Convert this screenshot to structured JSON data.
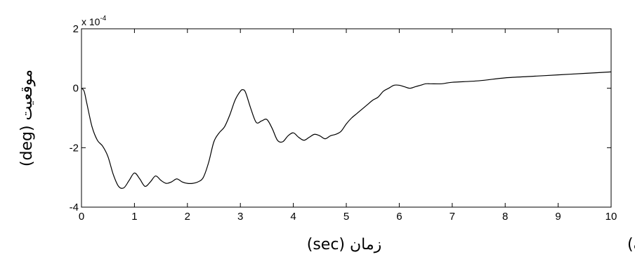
{
  "chart_data": {
    "type": "line",
    "title": "",
    "xlabel": "زمان (sec)",
    "ylabel": "موقعیت (deg)",
    "panel_label": "الف)",
    "y_exponent_label": "x 10",
    "y_exponent_power": "-4",
    "xlim": [
      0,
      10
    ],
    "ylim": [
      -4,
      2
    ],
    "y_scale_factor": 0.0001,
    "xticks": [
      0,
      1,
      2,
      3,
      4,
      5,
      6,
      7,
      8,
      9,
      10
    ],
    "xtick_labels": [
      "0",
      "1",
      "2",
      "3",
      "4",
      "5",
      "6",
      "7",
      "8",
      "9",
      "10"
    ],
    "yticks": [
      -4,
      -2,
      0,
      2
    ],
    "ytick_labels": [
      "-4",
      "-2",
      "0",
      "2"
    ],
    "grid": false,
    "line_color": "#000000",
    "series": [
      {
        "x": [
          0,
          0.05,
          0.1,
          0.2,
          0.3,
          0.4,
          0.5,
          0.6,
          0.7,
          0.8,
          0.9,
          1.0,
          1.1,
          1.2,
          1.3,
          1.4,
          1.5,
          1.6,
          1.7,
          1.8,
          1.9,
          2.0,
          2.1,
          2.2,
          2.3,
          2.4,
          2.5,
          2.6,
          2.7,
          2.8,
          2.9,
          3.0,
          3.05,
          3.1,
          3.2,
          3.3,
          3.4,
          3.5,
          3.6,
          3.7,
          3.8,
          3.9,
          4.0,
          4.1,
          4.2,
          4.3,
          4.4,
          4.5,
          4.6,
          4.7,
          4.8,
          4.9,
          5.0,
          5.1,
          5.2,
          5.3,
          5.4,
          5.5,
          5.6,
          5.7,
          5.8,
          5.9,
          6.0,
          6.1,
          6.2,
          6.3,
          6.4,
          6.5,
          6.6,
          6.8,
          7.0,
          7.5,
          8.0,
          8.5,
          9.0,
          9.5,
          10.0
        ],
        "y": [
          0,
          -0.1,
          -0.5,
          -1.3,
          -1.75,
          -1.95,
          -2.3,
          -2.9,
          -3.3,
          -3.35,
          -3.1,
          -2.85,
          -3.05,
          -3.3,
          -3.15,
          -2.95,
          -3.1,
          -3.2,
          -3.15,
          -3.05,
          -3.15,
          -3.2,
          -3.2,
          -3.15,
          -3.0,
          -2.5,
          -1.8,
          -1.5,
          -1.3,
          -0.9,
          -0.4,
          -0.1,
          -0.05,
          -0.15,
          -0.7,
          -1.15,
          -1.1,
          -1.05,
          -1.35,
          -1.75,
          -1.8,
          -1.6,
          -1.5,
          -1.65,
          -1.75,
          -1.65,
          -1.55,
          -1.6,
          -1.7,
          -1.6,
          -1.55,
          -1.45,
          -1.2,
          -1.0,
          -0.85,
          -0.7,
          -0.55,
          -0.4,
          -0.3,
          -0.1,
          0.0,
          0.1,
          0.1,
          0.05,
          0.0,
          0.05,
          0.1,
          0.15,
          0.15,
          0.15,
          0.2,
          0.25,
          0.35,
          0.4,
          0.45,
          0.5,
          0.55
        ]
      }
    ]
  }
}
